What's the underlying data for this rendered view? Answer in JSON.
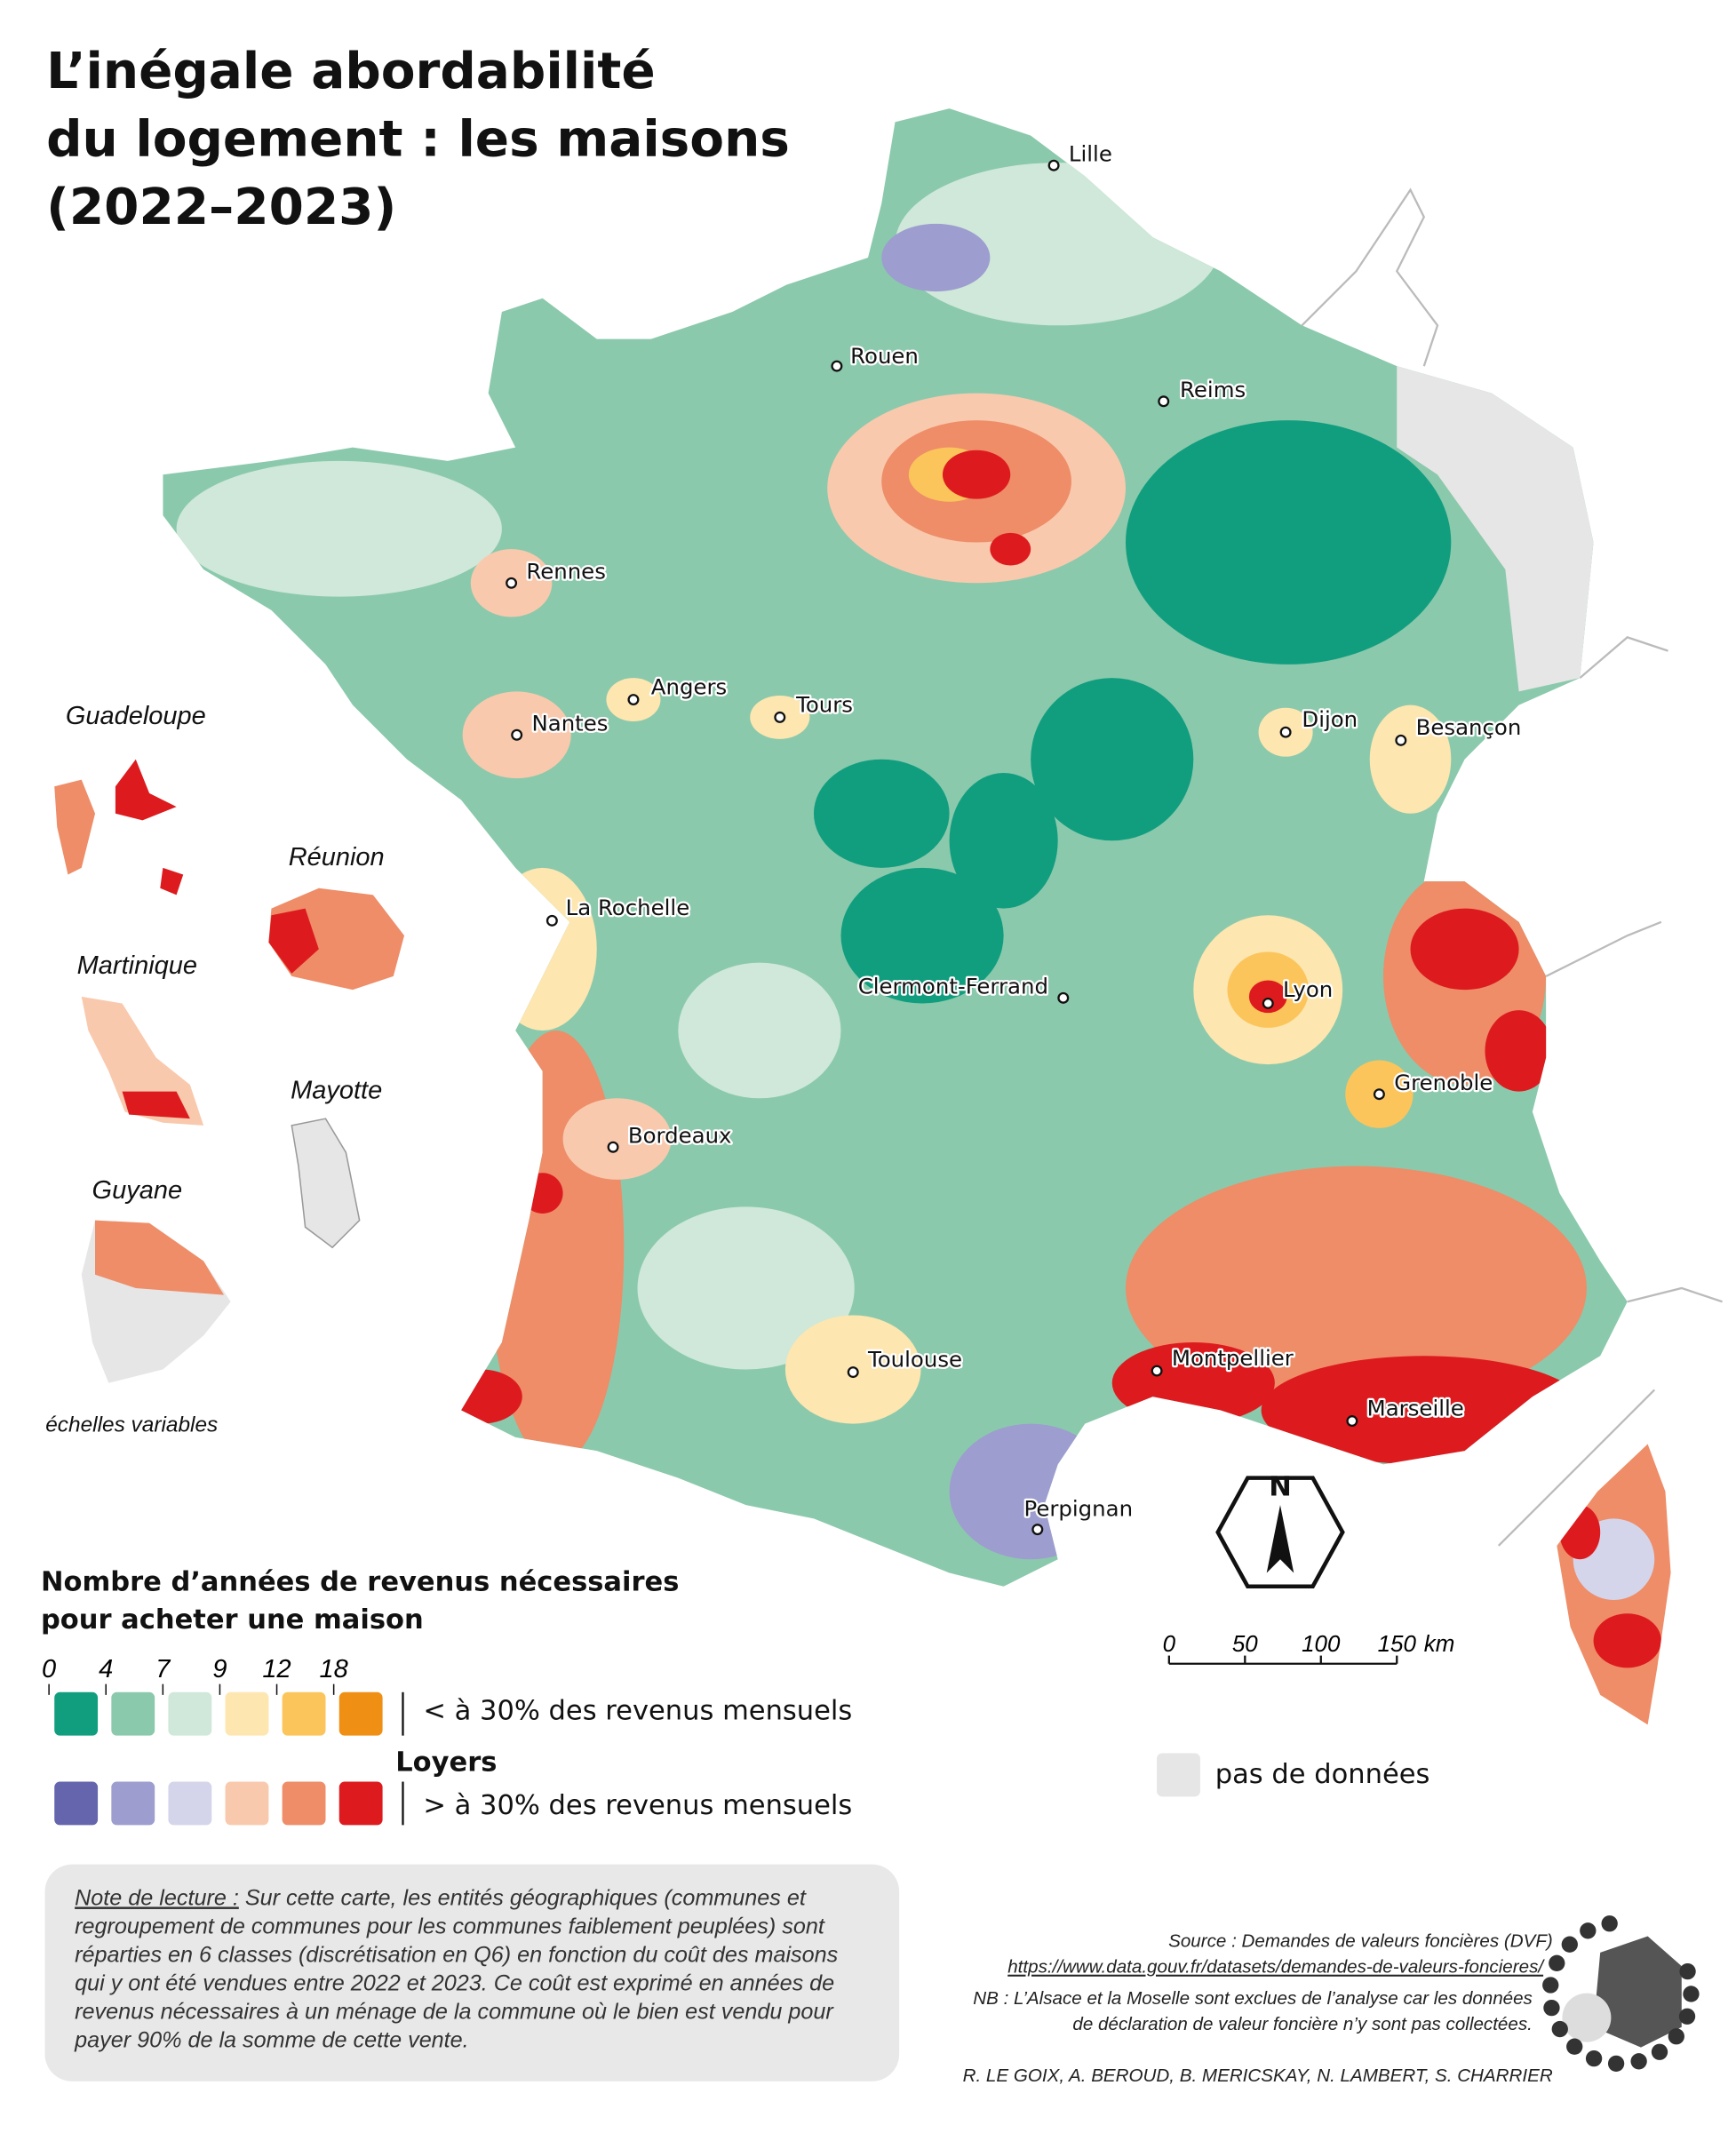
{
  "title": {
    "lines": [
      "L’inégale abordabilité",
      "du logement : les maisons",
      "(2022–2023)"
    ]
  },
  "cities": [
    "Lille",
    "Rouen",
    "Reims",
    "Rennes",
    "Angers",
    "Tours",
    "Nantes",
    "Dijon",
    "Besançon",
    "La Rochelle",
    "Clermont-Ferrand",
    "Lyon",
    "Grenoble",
    "Bordeaux",
    "Toulouse",
    "Montpellier",
    "Marseille",
    "Perpignan"
  ],
  "overseas": {
    "guadeloupe": "Guadeloupe",
    "reunion": "Réunion",
    "martinique": "Martinique",
    "mayotte": "Mayotte",
    "guyane": "Guyane",
    "scale_note": "échelles variables"
  },
  "legend": {
    "title": [
      "Nombre d’années de revenus nécessaires",
      "pour acheter une maison"
    ],
    "breaks": [
      0,
      4,
      7,
      9,
      12,
      18
    ],
    "purchase_colors": [
      "#119e7f",
      "#8bc9ac",
      "#cfe8d9",
      "#fde6b0",
      "#fbc55b",
      "#ef8f13"
    ],
    "below": "< à 30% des revenus mensuels",
    "rent_title": "Loyers",
    "rent_colors": [
      "#6565ad",
      "#9d9dcf",
      "#d4d5ea",
      "#f9c9ad",
      "#ee8d68",
      "#dd1b1e"
    ],
    "above": "> à 30% des revenus mensuels",
    "no_data": "pas de données",
    "no_data_color": "#e6e6e6"
  },
  "compass": "N",
  "scale": {
    "ticks": [
      0,
      50,
      100,
      150
    ],
    "unit": "km"
  },
  "note": {
    "label": "Note de lecture :",
    "lines": [
      " Sur cette carte, les entités géographiques (communes et",
      "regroupement de communes pour les communes faiblement peuplées) sont",
      "réparties en 6 classes (discrétisation en Q6) en fonction du coût des maisons",
      "qui y ont été vendues entre 2022 et 2023. Ce coût est exprimé en années de",
      "revenus nécessaires à un ménage de la commune où le bien est vendu pour",
      "payer 90% de la somme de cette vente."
    ]
  },
  "source": {
    "text": "Source : Demandes de valeurs foncières (DVF)",
    "link": "https://www.data.gouv.fr/datasets/demandes-de-valeurs-foncieres/",
    "nb": [
      "NB : L’Alsace et la Moselle sont exclues de l’analyse car les données",
      "de déclaration de valeur foncière n’y sont pas collectées."
    ],
    "authors": "R. LE GOIX, A. BEROUD, B. MERICSKAY, N. LAMBERT, S. CHARRIER"
  }
}
